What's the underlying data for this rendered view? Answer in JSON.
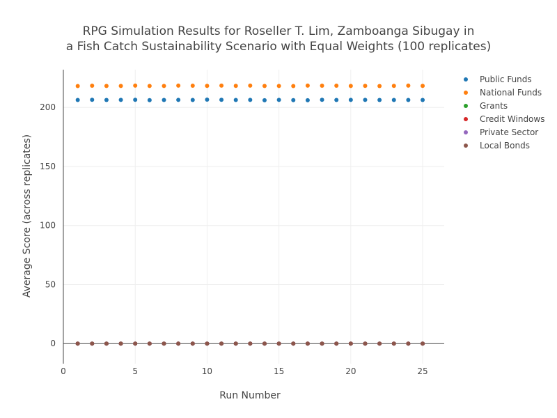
{
  "chart_data": {
    "type": "scatter",
    "title_lines": [
      "RPG Simulation Results for Roseller T. Lim, Zamboanga Sibugay in",
      "a Fish Catch Sustainability Scenario with Equal Weights (100 replicates)"
    ],
    "xlabel": "Run Number",
    "ylabel": "Average Score (across replicates)",
    "xlim": [
      0,
      26.5
    ],
    "ylim": [
      -17,
      232
    ],
    "xticks": [
      0,
      5,
      10,
      15,
      20,
      25
    ],
    "yticks": [
      0,
      50,
      100,
      150,
      200
    ],
    "grid": true,
    "legend_position": "top-right",
    "x": [
      1,
      2,
      3,
      4,
      5,
      6,
      7,
      8,
      9,
      10,
      11,
      12,
      13,
      14,
      15,
      16,
      17,
      18,
      19,
      20,
      21,
      22,
      23,
      24,
      25
    ],
    "series": [
      {
        "name": "Public Funds",
        "color": "#1f77b4",
        "values": [
          206.3,
          206.5,
          206.3,
          206.4,
          206.5,
          206.2,
          206.3,
          206.4,
          206.3,
          206.6,
          206.5,
          206.3,
          206.4,
          206.1,
          206.4,
          206.2,
          206.1,
          206.5,
          206.3,
          206.4,
          206.4,
          206.3,
          206.3,
          206.3,
          206.3
        ]
      },
      {
        "name": "National Funds",
        "color": "#ff7f0e",
        "values": [
          218.1,
          218.4,
          218.2,
          218.2,
          218.5,
          218.2,
          218.2,
          218.5,
          218.4,
          218.3,
          218.5,
          218.3,
          218.5,
          218.2,
          218.2,
          218.1,
          218.5,
          218.4,
          218.4,
          218.2,
          218.3,
          218.1,
          218.3,
          218.5,
          218.3
        ]
      },
      {
        "name": "Grants",
        "color": "#2ca02c",
        "values": [
          0,
          0,
          0,
          0,
          0,
          0,
          0,
          0,
          0,
          0,
          0,
          0,
          0,
          0,
          0,
          0,
          0,
          0,
          0,
          0,
          0,
          0,
          0,
          0,
          0
        ]
      },
      {
        "name": "Credit Windows",
        "color": "#d62728",
        "values": [
          0,
          0,
          0,
          0,
          0,
          0,
          0,
          0,
          0,
          0,
          0,
          0,
          0,
          0,
          0,
          0,
          0,
          0,
          0,
          0,
          0,
          0,
          0,
          0,
          0
        ]
      },
      {
        "name": "Private Sector",
        "color": "#9467bd",
        "values": [
          0,
          0,
          0,
          0,
          0,
          0,
          0,
          0,
          0,
          0,
          0,
          0,
          0,
          0,
          0,
          0,
          0,
          0,
          0,
          0,
          0,
          0,
          0,
          0,
          0
        ]
      },
      {
        "name": "Local Bonds",
        "color": "#8c564b",
        "values": [
          0,
          0,
          0,
          0,
          0,
          0,
          0,
          0,
          0,
          0,
          0,
          0,
          0,
          0,
          0,
          0,
          0,
          0,
          0,
          0,
          0,
          0,
          0,
          0,
          0
        ]
      }
    ]
  }
}
